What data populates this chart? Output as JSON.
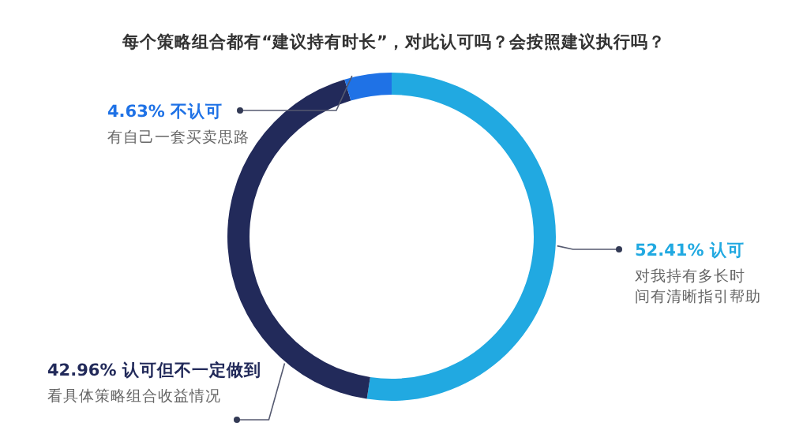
{
  "chart_data": {
    "type": "donut",
    "title": "每个策略组合都有“建议持有时长”，对此认可吗？会按照建议执行吗？",
    "categories": [
      "认可",
      "认可但不一定做到",
      "不认可"
    ],
    "values": [
      52.41,
      42.96,
      4.63
    ],
    "colors": [
      "#21a9e1",
      "#222a5a",
      "#1f72e6"
    ],
    "value_labels": [
      "52.41%",
      "42.96%",
      "4.63%"
    ],
    "annotations": [
      {
        "text": "对我持有多长时间有清晰指引帮助",
        "x": "认可"
      },
      {
        "text": "看具体策略组合收益情况",
        "x": "认可但不一定做到"
      },
      {
        "text": "有自己一套买卖思路",
        "x": "不认可"
      }
    ]
  }
}
